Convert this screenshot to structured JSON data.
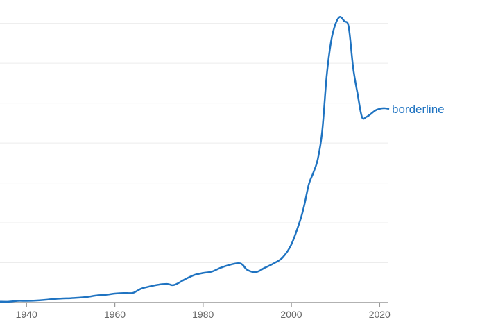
{
  "chart_data": {
    "type": "line",
    "title": "",
    "xlabel": "",
    "ylabel": "",
    "xlim": [
      1934,
      2022
    ],
    "ylim": [
      0,
      1.0
    ],
    "grid": true,
    "grid_lines_y": [
      0.1375,
      0.275,
      0.4125,
      0.55,
      0.6875,
      0.825,
      0.9625
    ],
    "x_ticks": [
      1940,
      1960,
      1980,
      2000,
      2020
    ],
    "x_tick_labels": [
      "1940",
      "1960",
      "1980",
      "2000",
      "2020"
    ],
    "legend": "inline-right",
    "series": [
      {
        "name": "borderline",
        "color": "#1f73c1",
        "x": [
          1934,
          1936,
          1938,
          1940,
          1942,
          1944,
          1946,
          1948,
          1950,
          1952,
          1954,
          1956,
          1958,
          1960,
          1962,
          1964,
          1965,
          1966,
          1968,
          1970,
          1972,
          1973,
          1974,
          1976,
          1978,
          1980,
          1982,
          1984,
          1986,
          1988,
          1989,
          1990,
          1992,
          1994,
          1996,
          1998,
          2000,
          2002,
          2003,
          2004,
          2005,
          2006,
          2007,
          2008,
          2009,
          2010,
          2011,
          2012,
          2013,
          2014,
          2015,
          2016,
          2017,
          2018,
          2019,
          2020,
          2021,
          2022
        ],
        "y": [
          0.003,
          0.003,
          0.006,
          0.006,
          0.007,
          0.009,
          0.012,
          0.014,
          0.015,
          0.017,
          0.02,
          0.025,
          0.027,
          0.031,
          0.033,
          0.033,
          0.04,
          0.048,
          0.056,
          0.062,
          0.064,
          0.06,
          0.064,
          0.081,
          0.095,
          0.102,
          0.107,
          0.12,
          0.13,
          0.136,
          0.13,
          0.113,
          0.105,
          0.12,
          0.135,
          0.155,
          0.2,
          0.283,
          0.34,
          0.41,
          0.448,
          0.495,
          0.59,
          0.78,
          0.9,
          0.96,
          0.985,
          0.97,
          0.95,
          0.81,
          0.72,
          0.64,
          0.64,
          0.65,
          0.662,
          0.668,
          0.67,
          0.668
        ]
      }
    ]
  }
}
